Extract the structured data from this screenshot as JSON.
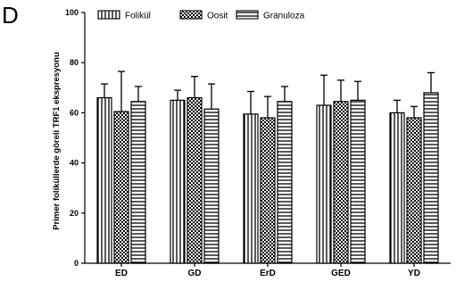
{
  "panel_label": "D",
  "chart_data": {
    "type": "bar",
    "ylabel": "Primer foliküllerde göreli TRF1 ekspresyonu",
    "xlabel": "",
    "ylim": [
      0,
      100
    ],
    "yticks": [
      0,
      20,
      40,
      60,
      80,
      100
    ],
    "categories": [
      "ED",
      "GD",
      "ErD",
      "GED",
      "YD"
    ],
    "series": [
      {
        "name": "Folikül",
        "pattern": "vertical-stripes",
        "values": [
          66,
          65,
          59.5,
          63,
          60
        ],
        "errors": [
          5.5,
          4,
          9,
          12,
          5
        ]
      },
      {
        "name": "Oosit",
        "pattern": "checker",
        "values": [
          60.5,
          66,
          58,
          64.5,
          58
        ],
        "errors": [
          16,
          8.5,
          8.5,
          8.5,
          4.5
        ]
      },
      {
        "name": "Granuloza",
        "pattern": "horizontal-stripes",
        "values": [
          64.5,
          61.5,
          64.5,
          65,
          68
        ],
        "errors": [
          6,
          10,
          6,
          7.5,
          8
        ]
      }
    ],
    "legend_position": "top",
    "grid": false,
    "colors": {
      "stroke": "#000000",
      "fill": "#ffffff"
    }
  }
}
